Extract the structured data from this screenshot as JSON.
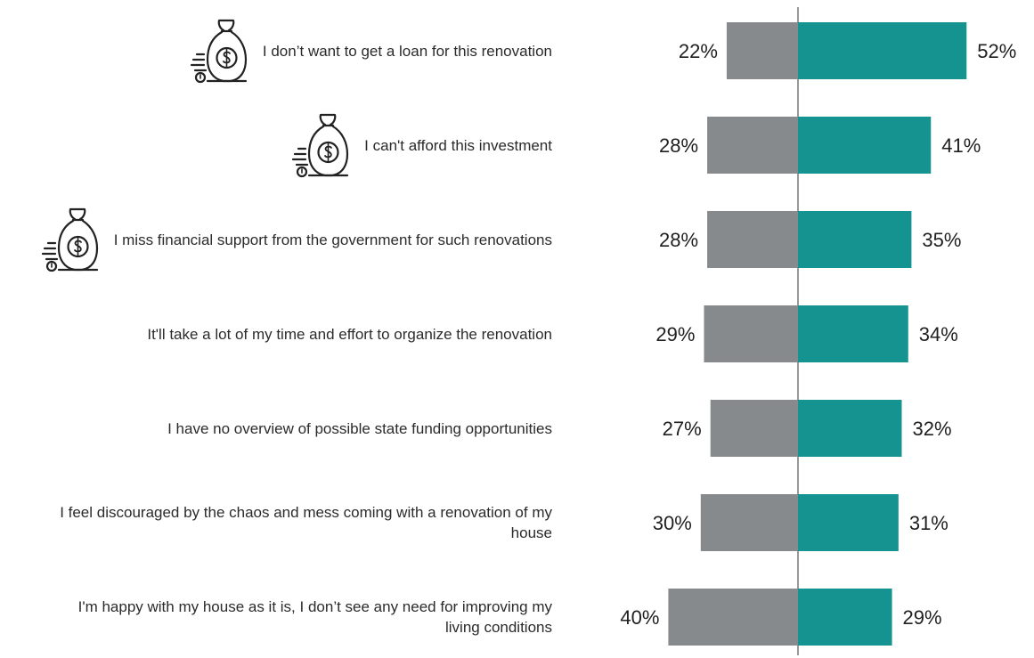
{
  "chart_data": {
    "type": "bar",
    "orientation": "horizontal-diverging",
    "categories": [
      "I don’t want to get a loan for this renovation",
      "I can't afford this investment",
      "I miss financial support from the government for such renovations",
      "It'll take a lot of my time and effort to organize the renovation",
      "I have no overview of possible state funding opportunities",
      "I feel discouraged by the chaos and mess coming with a renovation of my house",
      "I'm happy with my house as it is, I don’t see any need for improving my living conditions"
    ],
    "series": [
      {
        "values": [
          22,
          28,
          28,
          29,
          27,
          30,
          40
        ],
        "color": "#878a8c",
        "side": "left"
      },
      {
        "values": [
          52,
          41,
          35,
          34,
          32,
          31,
          29
        ],
        "color": "#159390",
        "side": "right"
      }
    ],
    "value_suffix": "%",
    "center_line": true,
    "grid": false,
    "legend": "none",
    "icons": [
      "money-bag-icon",
      "money-bag-icon",
      "money-bag-icon",
      null,
      null,
      null,
      null
    ]
  }
}
